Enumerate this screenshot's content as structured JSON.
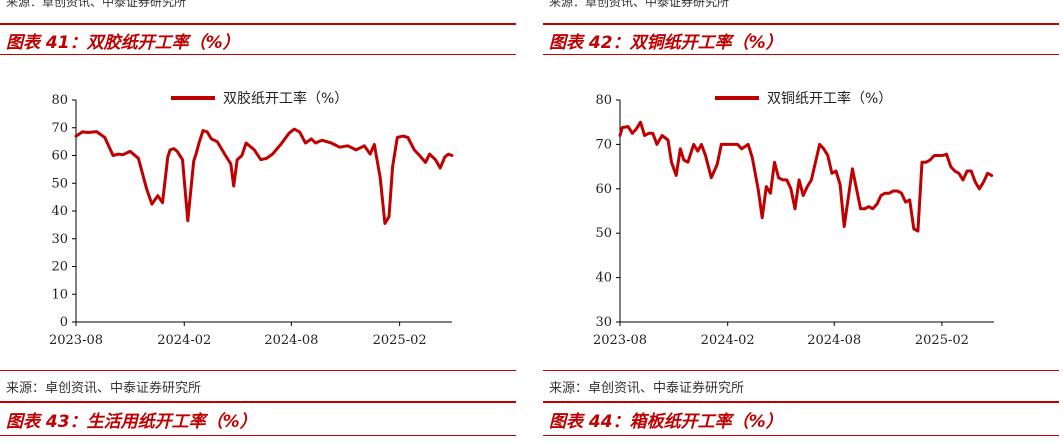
{
  "top_source": "来源：卓创资讯、中泰证券研究所",
  "bottom_source": "来源：卓创资讯、中泰证券研究所",
  "figures": [
    {
      "title": "图表 41：双胶纸开工率（%）"
    },
    {
      "title": "图表 42：双铜纸开工率（%）"
    },
    {
      "title": "图表 43：生活用纸开工率（%）"
    },
    {
      "title": "图表 44：箱板纸开工率（%）"
    }
  ],
  "chart_data": [
    {
      "type": "line",
      "legend": "双胶纸开工率（%）",
      "legend_position": "top",
      "x_tick_labels": [
        "2023-08",
        "2024-02",
        "2024-08",
        "2025-02"
      ],
      "x_tick_dates": [
        "2023-08-01",
        "2024-02-01",
        "2024-08-01",
        "2025-02-01"
      ],
      "x_range": [
        "2023-08-01",
        "2025-05-01"
      ],
      "ylim": [
        0,
        80
      ],
      "yticks": [
        0,
        10,
        20,
        30,
        40,
        50,
        60,
        70,
        80
      ],
      "color": "#c00000",
      "grid": false,
      "series": [
        {
          "x": [
            "2023-08-01",
            "2023-08-12",
            "2023-08-22",
            "2023-09-05",
            "2023-09-19",
            "2023-10-03",
            "2023-10-12",
            "2023-10-20",
            "2023-11-01",
            "2023-11-15",
            "2023-11-29",
            "2023-12-08",
            "2023-12-18",
            "2023-12-26",
            "2024-01-04",
            "2024-01-08",
            "2024-01-14",
            "2024-01-20",
            "2024-01-29",
            "2024-02-07",
            "2024-02-17",
            "2024-02-21",
            "2024-02-26",
            "2024-03-04",
            "2024-03-11",
            "2024-03-18",
            "2024-03-28",
            "2024-04-11",
            "2024-04-20",
            "2024-04-25",
            "2024-05-01",
            "2024-05-09",
            "2024-05-16",
            "2024-05-30",
            "2024-06-10",
            "2024-06-20",
            "2024-06-30",
            "2024-07-14",
            "2024-07-28",
            "2024-08-06",
            "2024-08-15",
            "2024-08-25",
            "2024-09-04",
            "2024-09-11",
            "2024-09-22",
            "2024-10-08",
            "2024-10-22",
            "2024-11-05",
            "2024-11-19",
            "2024-12-03",
            "2024-12-13",
            "2024-12-20",
            "2024-12-30",
            "2025-01-07",
            "2025-01-14",
            "2025-01-20",
            "2025-01-28",
            "2025-02-07",
            "2025-02-15",
            "2025-02-26",
            "2025-03-07",
            "2025-03-17",
            "2025-03-24",
            "2025-04-03",
            "2025-04-11",
            "2025-04-19",
            "2025-04-25",
            "2025-05-01"
          ],
          "values": [
            67.0,
            68.5,
            68.3,
            68.6,
            66.5,
            60.0,
            60.5,
            60.3,
            61.5,
            59.0,
            48.0,
            42.5,
            45.5,
            43.0,
            59.5,
            62.0,
            62.5,
            61.5,
            58.5,
            36.5,
            58.0,
            60.5,
            64.5,
            69.0,
            68.5,
            66.0,
            65.0,
            60.0,
            57.0,
            49.0,
            58.5,
            60.0,
            64.5,
            62.0,
            58.5,
            59.0,
            60.5,
            64.0,
            68.0,
            69.5,
            68.5,
            64.5,
            66.0,
            64.5,
            65.5,
            64.5,
            63.0,
            63.5,
            62.0,
            63.5,
            60.5,
            64.0,
            52.0,
            35.5,
            38.0,
            56.0,
            66.5,
            67.0,
            66.5,
            62.0,
            60.0,
            57.5,
            60.5,
            58.5,
            55.5,
            59.5,
            60.5,
            60.0
          ]
        }
      ]
    },
    {
      "type": "line",
      "legend": "双铜纸开工率（%）",
      "legend_position": "top",
      "x_tick_labels": [
        "2023-08",
        "2024-02",
        "2024-08",
        "2025-02"
      ],
      "x_tick_dates": [
        "2023-08-01",
        "2024-02-01",
        "2024-08-01",
        "2025-02-01"
      ],
      "x_range": [
        "2023-08-01",
        "2025-05-01"
      ],
      "ylim": [
        30,
        80
      ],
      "yticks": [
        30,
        40,
        50,
        60,
        70,
        80
      ],
      "color": "#c00000",
      "grid": false,
      "series": [
        {
          "x": [
            "2023-08-01",
            "2023-08-05",
            "2023-08-15",
            "2023-08-22",
            "2023-08-29",
            "2023-09-05",
            "2023-09-12",
            "2023-09-19",
            "2023-09-26",
            "2023-10-03",
            "2023-10-12",
            "2023-10-22",
            "2023-10-28",
            "2023-11-05",
            "2023-11-12",
            "2023-11-18",
            "2023-11-25",
            "2023-12-05",
            "2023-12-12",
            "2023-12-18",
            "2023-12-25",
            "2024-01-04",
            "2024-01-14",
            "2024-01-21",
            "2024-01-31",
            "2024-02-11",
            "2024-02-18",
            "2024-02-25",
            "2024-03-07",
            "2024-03-14",
            "2024-03-24",
            "2024-03-31",
            "2024-04-07",
            "2024-04-14",
            "2024-04-21",
            "2024-04-28",
            "2024-05-05",
            "2024-05-12",
            "2024-05-19",
            "2024-05-26",
            "2024-06-02",
            "2024-06-09",
            "2024-06-16",
            "2024-06-23",
            "2024-06-30",
            "2024-07-07",
            "2024-07-14",
            "2024-07-21",
            "2024-07-28",
            "2024-08-04",
            "2024-08-11",
            "2024-08-18",
            "2024-08-25",
            "2024-09-01",
            "2024-09-08",
            "2024-09-15",
            "2024-09-22",
            "2024-09-29",
            "2024-10-06",
            "2024-10-13",
            "2024-10-20",
            "2024-10-27",
            "2024-11-03",
            "2024-11-10",
            "2024-11-17",
            "2024-11-24",
            "2024-12-01",
            "2024-12-08",
            "2024-12-15",
            "2024-12-22",
            "2024-12-29",
            "2025-01-05",
            "2025-01-12",
            "2025-01-19",
            "2025-01-26",
            "2025-02-02",
            "2025-02-09",
            "2025-02-16",
            "2025-02-23",
            "2025-03-02",
            "2025-03-09",
            "2025-03-16",
            "2025-03-23",
            "2025-03-30",
            "2025-04-06",
            "2025-04-13",
            "2025-04-20",
            "2025-04-27"
          ],
          "values": [
            72.0,
            73.8,
            74.0,
            72.5,
            73.5,
            75.0,
            72.0,
            72.5,
            72.5,
            70.0,
            72.0,
            71.0,
            66.0,
            63.0,
            69.0,
            66.5,
            66.0,
            70.0,
            68.5,
            70.0,
            67.5,
            62.5,
            65.5,
            70.0,
            70.0,
            70.0,
            70.0,
            69.0,
            70.0,
            67.0,
            60.0,
            53.5,
            60.5,
            59.0,
            66.0,
            62.5,
            62.0,
            62.0,
            60.0,
            55.5,
            62.0,
            58.5,
            60.5,
            62.0,
            66.0,
            70.0,
            69.0,
            67.5,
            63.5,
            64.0,
            61.0,
            51.5,
            58.0,
            64.5,
            60.0,
            55.5,
            55.5,
            56.0,
            55.5,
            56.5,
            58.5,
            59.0,
            59.0,
            59.5,
            59.5,
            59.0,
            57.0,
            57.5,
            51.0,
            50.5,
            66.0,
            66.0,
            66.5,
            67.5,
            67.5,
            67.5,
            67.8,
            65.0,
            64.0,
            63.5,
            62.0,
            64.0,
            64.0,
            61.5,
            60.0,
            61.5,
            63.5,
            63.0
          ]
        }
      ]
    }
  ]
}
